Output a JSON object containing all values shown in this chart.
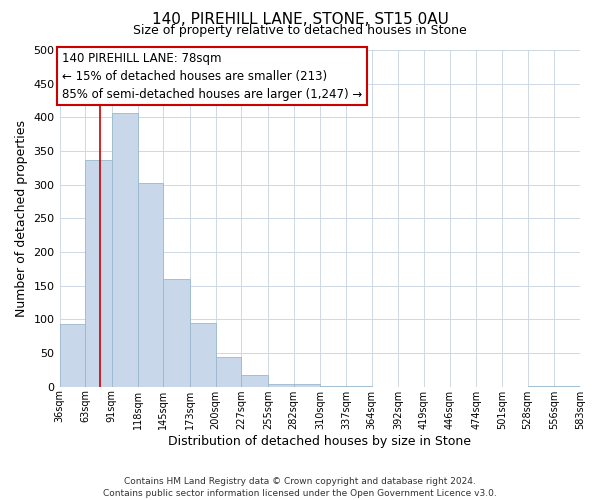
{
  "title": "140, PIREHILL LANE, STONE, ST15 0AU",
  "subtitle": "Size of property relative to detached houses in Stone",
  "xlabel": "Distribution of detached houses by size in Stone",
  "ylabel": "Number of detached properties",
  "bar_color": "#c8d8ea",
  "bar_edge_color": "#9ab8cc",
  "bin_edges": [
    36,
    63,
    91,
    118,
    145,
    173,
    200,
    227,
    255,
    282,
    310,
    337,
    364,
    392,
    419,
    446,
    474,
    501,
    528,
    556,
    583
  ],
  "bar_heights": [
    93,
    336,
    407,
    303,
    160,
    95,
    44,
    18,
    4,
    4,
    1,
    1,
    0,
    0,
    0,
    0,
    0,
    0,
    1,
    1
  ],
  "tick_labels": [
    "36sqm",
    "63sqm",
    "91sqm",
    "118sqm",
    "145sqm",
    "173sqm",
    "200sqm",
    "227sqm",
    "255sqm",
    "282sqm",
    "310sqm",
    "337sqm",
    "364sqm",
    "392sqm",
    "419sqm",
    "446sqm",
    "474sqm",
    "501sqm",
    "528sqm",
    "556sqm",
    "583sqm"
  ],
  "vline_x": 78,
  "vline_color": "#cc0000",
  "annotation_text_line1": "140 PIREHILL LANE: 78sqm",
  "annotation_text_line2": "← 15% of detached houses are smaller (213)",
  "annotation_text_line3": "85% of semi-detached houses are larger (1,247) →",
  "ylim": [
    0,
    500
  ],
  "yticks": [
    0,
    50,
    100,
    150,
    200,
    250,
    300,
    350,
    400,
    450,
    500
  ],
  "footer_line1": "Contains HM Land Registry data © Crown copyright and database right 2024.",
  "footer_line2": "Contains public sector information licensed under the Open Government Licence v3.0.",
  "bg_color": "#ffffff",
  "grid_color": "#cdd8e4"
}
